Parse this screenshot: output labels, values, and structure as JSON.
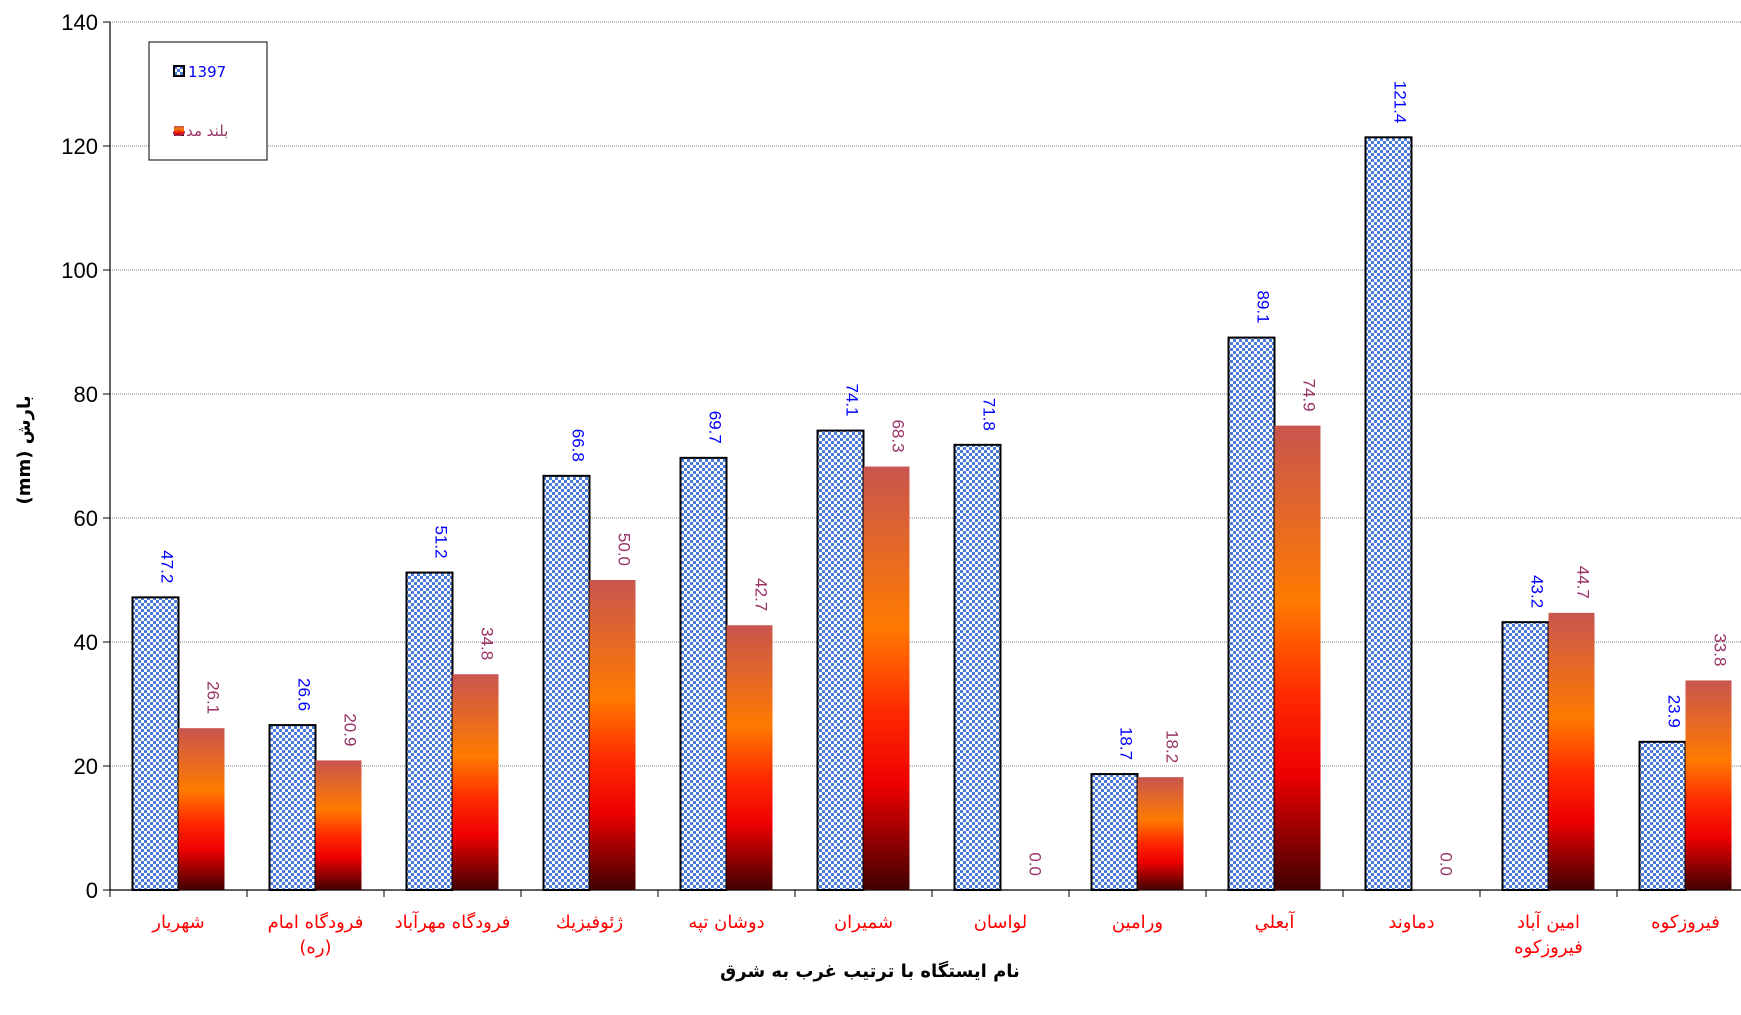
{
  "chart_data": {
    "type": "bar",
    "xlabel": "نام ایستگاه با ترتیب  غرب به شرق",
    "ylabel": "بارش (mm)",
    "ylim": [
      0,
      140
    ],
    "yticks": [
      "0",
      "20",
      "40",
      "60",
      "80",
      "100",
      "120",
      "140"
    ],
    "grid": true,
    "legend_position": "top-left",
    "categories": [
      [
        "شهريار"
      ],
      [
        "فرودگاه امام",
        "(ره)"
      ],
      [
        "فرودگاه مهرآباد"
      ],
      [
        "ژئوفيزيك"
      ],
      [
        "دوشان تپه"
      ],
      [
        "شميران"
      ],
      [
        "لواسان"
      ],
      [
        "ورامين"
      ],
      [
        "آبعلي"
      ],
      [
        "دماوند"
      ],
      [
        "امين آباد",
        "فيروزكوه"
      ],
      [
        "فيروزكوه"
      ]
    ],
    "series": [
      {
        "name": "1397",
        "values": [
          47.2,
          26.6,
          51.2,
          66.8,
          69.7,
          74.1,
          71.8,
          18.7,
          89.1,
          121.4,
          43.2,
          23.9
        ],
        "labels": [
          "47.2",
          "26.6",
          "51.2",
          "66.8",
          "69.7",
          "74.1",
          "71.8",
          "18.7",
          "89.1",
          "121.4",
          "43.2",
          "23.9"
        ],
        "label_color": "#0000ff",
        "fill": "pattern-blue-checker"
      },
      {
        "name": "بلند مدت",
        "values": [
          26.1,
          20.9,
          34.8,
          50.0,
          42.7,
          68.3,
          0.0,
          18.2,
          74.9,
          0.0,
          44.7,
          33.8
        ],
        "labels": [
          "26.1",
          "20.9",
          "34.8",
          "50.0",
          "42.7",
          "68.3",
          "0.0",
          "18.2",
          "74.9",
          "0.0",
          "44.7",
          "33.8"
        ],
        "label_color": "#993366",
        "fill": "gradient-fire"
      }
    ]
  },
  "colors": {
    "category_label": "#ff0000",
    "series1_label": "#0000ff",
    "series2_label": "#993366",
    "grid": "#808080"
  }
}
